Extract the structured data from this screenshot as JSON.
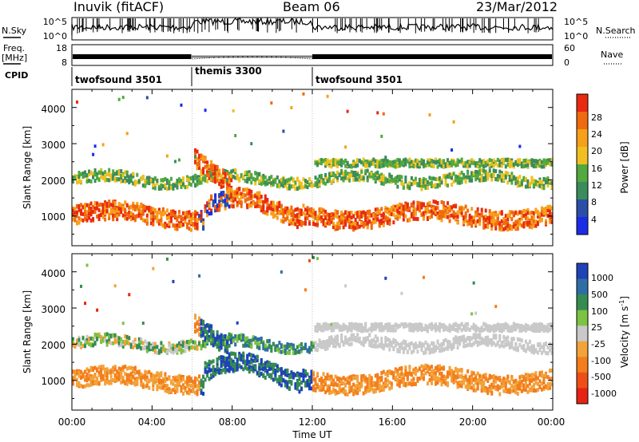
{
  "header": {
    "station": "Inuvik (fitACF)",
    "beam": "Beam 06",
    "date": "23/Mar/2012"
  },
  "noise_panel": {
    "left_label": "N.Sky",
    "right_label": "N.Search",
    "left_ticks": [
      "10^5",
      "10^0"
    ],
    "right_ticks": [
      "10^5",
      "10^0"
    ]
  },
  "freq_panel": {
    "left_label_1": "Freq.",
    "left_label_2": "[MHz]",
    "right_label": "Nave",
    "left_ticks": [
      "18",
      "8"
    ],
    "right_ticks": [
      "60",
      "0"
    ]
  },
  "cpid": {
    "label": "CPID",
    "segments": [
      {
        "name": "twofsound 3501",
        "start_hour": 0,
        "end_hour": 6
      },
      {
        "name": "themis 3300",
        "start_hour": 6,
        "end_hour": 12
      },
      {
        "name": "twofsound 3501",
        "start_hour": 12,
        "end_hour": 24
      }
    ]
  },
  "colors": {
    "power": [
      "#1a2ce6",
      "#2b4fa6",
      "#3a8c5a",
      "#52a93f",
      "#f0c020",
      "#f7a01a",
      "#f06a10",
      "#e82a10"
    ],
    "velocity": [
      "#1e42b8",
      "#2f6ea5",
      "#358c52",
      "#7cc243",
      "#c9c9c9",
      "#f2a33a",
      "#f47d1d",
      "#ee4f17",
      "#e52414"
    ]
  },
  "chart_data": [
    {
      "type": "heatmap",
      "parameter": "power",
      "ylabel": "Slant Range [km]",
      "xlabel": "Time UT",
      "x_ticks": [
        "00:00",
        "04:00",
        "08:00",
        "12:00",
        "16:00",
        "20:00",
        "00:00"
      ],
      "x_range_hours": [
        0,
        24
      ],
      "y_range_km": [
        180,
        4500
      ],
      "y_ticks": [
        "1000",
        "2000",
        "3000",
        "4000"
      ],
      "colorbar_label": "Power [dB]",
      "colorbar_ticks": [
        "4",
        "8",
        "12",
        "16",
        "20",
        "24",
        "28"
      ],
      "colorbar_range": [
        0,
        32
      ]
    },
    {
      "type": "heatmap",
      "parameter": "velocity",
      "ylabel": "Slant Range [km]",
      "xlabel": "Time UT",
      "x_ticks": [
        "00:00",
        "04:00",
        "08:00",
        "12:00",
        "16:00",
        "20:00",
        "00:00"
      ],
      "x_range_hours": [
        0,
        24
      ],
      "y_range_km": [
        180,
        4500
      ],
      "y_ticks": [
        "1000",
        "2000",
        "3000",
        "4000"
      ],
      "colorbar_label": "Velocity [m s^-1]",
      "colorbar_ticks": [
        "1000",
        "500",
        "100",
        "25",
        "-25",
        "-100",
        "-500",
        "-1000"
      ]
    }
  ],
  "axis": {
    "xlabel": "Time UT"
  }
}
